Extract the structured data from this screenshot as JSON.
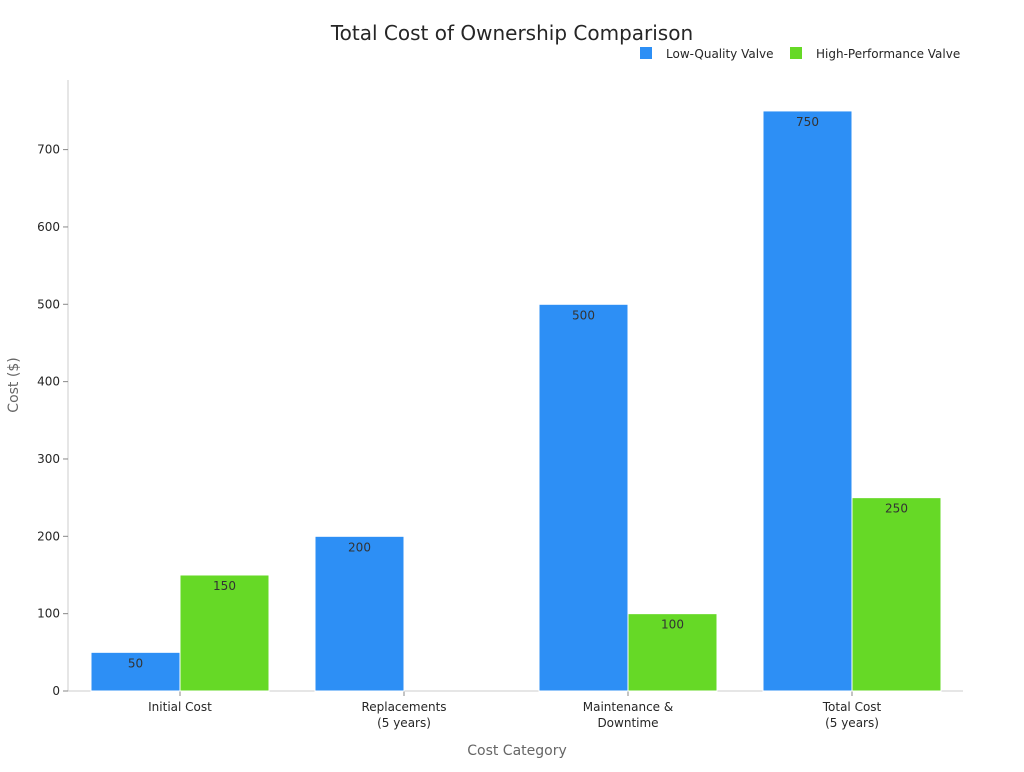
{
  "chart_data": {
    "type": "bar",
    "title": "Total Cost of Ownership Comparison",
    "xlabel": "Cost Category",
    "ylabel": "Cost ($)",
    "categories": [
      [
        "Initial Cost"
      ],
      [
        "Replacements",
        "(5 years)"
      ],
      [
        "Maintenance &",
        "Downtime"
      ],
      [
        "Total Cost",
        "(5 years)"
      ]
    ],
    "series": [
      {
        "name": "Low-Quality Valve",
        "color": "#2d8ff5",
        "values": [
          50,
          200,
          500,
          750
        ]
      },
      {
        "name": "High-Performance Valve",
        "color": "#66d926",
        "values": [
          150,
          0,
          100,
          250
        ]
      }
    ],
    "ylim": [
      0,
      790
    ],
    "yticks": [
      0,
      100,
      200,
      300,
      400,
      500,
      600,
      700
    ],
    "grid": false,
    "legend": "top-right",
    "data_labels": true
  }
}
